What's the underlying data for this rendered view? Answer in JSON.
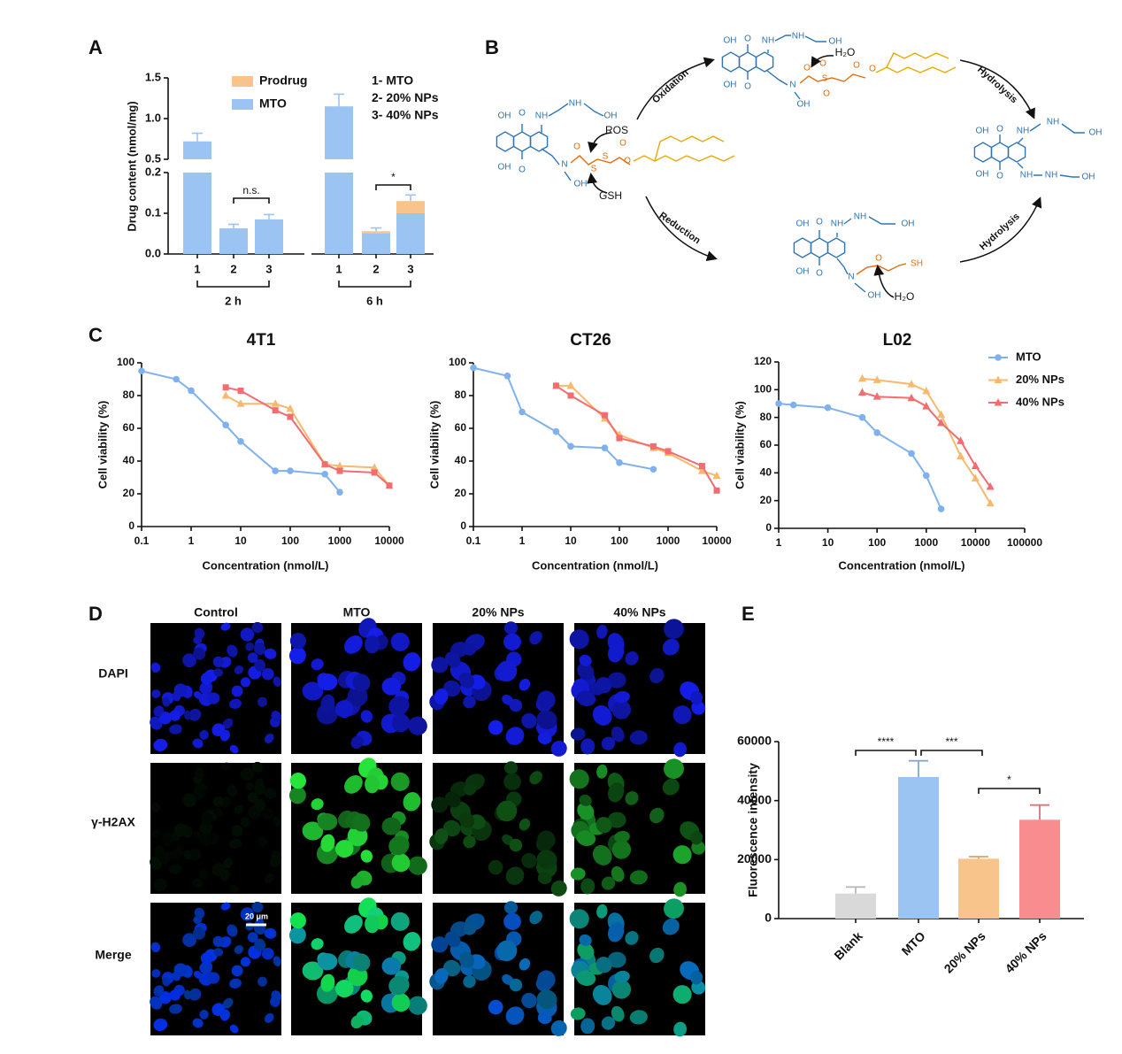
{
  "panels": [
    "A",
    "B",
    "C",
    "D",
    "E"
  ],
  "chart_data": [
    {
      "type": "stacked_bar",
      "y_label": "Drug content (nmol/mg)",
      "categories": [
        "1",
        "2",
        "3",
        "1",
        "2",
        "3"
      ],
      "groups": [
        "2 h",
        "6 h"
      ],
      "series": [
        {
          "name": "MTO",
          "color": "#9cc4f3",
          "values": [
            0.72,
            0.063,
            0.085,
            1.15,
            0.05,
            0.1
          ]
        },
        {
          "name": "Prodrug",
          "color": "#f9c38c",
          "values": [
            0,
            0,
            0,
            0,
            0.006,
            0.03
          ]
        }
      ],
      "errors": [
        0.1,
        0.01,
        0.012,
        0.15,
        0.008,
        0.015
      ],
      "ylim": [
        0,
        1.5
      ],
      "axis_break": [
        0.2,
        0.5
      ],
      "yticks": [
        {
          "value": 0,
          "label": "0.0"
        },
        0.1,
        0.2,
        0.5,
        {
          "value": 1,
          "label": "1.0"
        },
        1.5
      ],
      "key": [
        "1- MTO",
        "2- 20% NPs",
        "3- 40% NPs"
      ],
      "annotations": [
        "n.s.",
        "*"
      ]
    },
    {
      "type": "line",
      "title": "4T1",
      "x_label": "Concentration (nmol/L)",
      "y_label": "Cell viability (%)",
      "xscale": "log",
      "xlim": [
        0.1,
        10000
      ],
      "xticks": [
        0.1,
        1,
        10,
        100,
        1000,
        10000
      ],
      "ylim": [
        0,
        100
      ],
      "yticks": [
        0,
        20,
        40,
        60,
        80,
        100
      ],
      "series": [
        {
          "color": "#7eb1ee",
          "marker": "circle",
          "x": [
            0.1,
            0.5,
            1,
            5,
            10,
            50,
            100,
            500,
            1000
          ],
          "values": [
            95,
            90,
            83,
            62,
            52,
            34,
            34,
            32,
            21
          ]
        },
        {
          "color": "#f8b86e",
          "marker": "triangle",
          "x": [
            5,
            10,
            50,
            100,
            500,
            1000,
            5000,
            10000
          ],
          "values": [
            80,
            75,
            75,
            72,
            38,
            37,
            36,
            25
          ]
        },
        {
          "color": "#f26c70",
          "marker": "square",
          "x": [
            5,
            10,
            50,
            100,
            500,
            1000,
            5000,
            10000
          ],
          "values": [
            85,
            83,
            71,
            67,
            38,
            34,
            33,
            25
          ]
        }
      ]
    },
    {
      "type": "line",
      "title": "CT26",
      "x_label": "Concentration (nmol/L)",
      "y_label": "Cell viability (%)",
      "xscale": "log",
      "xlim": [
        0.1,
        10000
      ],
      "xticks": [
        0.1,
        1,
        10,
        100,
        1000,
        10000
      ],
      "ylim": [
        0,
        100
      ],
      "yticks": [
        0,
        20,
        40,
        60,
        80,
        100
      ],
      "series": [
        {
          "color": "#7eb1ee",
          "marker": "circle",
          "x": [
            0.1,
            0.5,
            1,
            5,
            10,
            50,
            100,
            500
          ],
          "values": [
            97,
            92,
            70,
            58,
            49,
            48,
            39,
            35
          ]
        },
        {
          "color": "#f8b86e",
          "marker": "triangle",
          "x": [
            5,
            10,
            50,
            100,
            500,
            1000,
            5000,
            10000
          ],
          "values": [
            86,
            86,
            66,
            56,
            48,
            45,
            34,
            31
          ]
        },
        {
          "color": "#f26c70",
          "marker": "square",
          "x": [
            5,
            10,
            50,
            100,
            500,
            1000,
            5000,
            10000
          ],
          "values": [
            86,
            80,
            68,
            54,
            49,
            46,
            37,
            22
          ]
        }
      ]
    },
    {
      "type": "line",
      "title": "L02",
      "x_label": "Concentration (nmol/L)",
      "y_label": "Cell viability (%)",
      "xscale": "log",
      "xlim": [
        1,
        100000
      ],
      "xticks": [
        1,
        10,
        100,
        1000,
        10000,
        100000
      ],
      "ylim": [
        0,
        120
      ],
      "yticks": [
        0,
        20,
        40,
        60,
        80,
        100,
        120
      ],
      "legend": "right",
      "series": [
        {
          "name": "MTO",
          "color": "#7eb1ee",
          "marker": "circle",
          "x": [
            1,
            2,
            10,
            50,
            100,
            500,
            1000,
            2000
          ],
          "values": [
            90,
            89,
            87,
            80,
            69,
            54,
            38,
            14
          ]
        },
        {
          "name": "20% NPs",
          "color": "#f8b86e",
          "marker": "triangle",
          "x": [
            50,
            100,
            500,
            1000,
            2000,
            5000,
            10000,
            20000
          ],
          "values": [
            108,
            107,
            104,
            99,
            82,
            52,
            36,
            18
          ]
        },
        {
          "name": "40% NPs",
          "color": "#f26c70",
          "marker": "triangle",
          "x": [
            50,
            100,
            500,
            1000,
            2000,
            5000,
            10000,
            20000
          ],
          "values": [
            98,
            95,
            94,
            88,
            76,
            63,
            45,
            30
          ]
        }
      ]
    },
    {
      "type": "bar",
      "y_label": "Fluorescence intensity",
      "categories": [
        "Blank",
        "MTO",
        "20% NPs",
        "40% NPs"
      ],
      "values": [
        8500,
        48000,
        20300,
        33500
      ],
      "errors": [
        2200,
        5500,
        700,
        5000
      ],
      "colors": [
        "#d9d9d9",
        "#9cc4f3",
        "#f9c38c",
        "#f98c8f"
      ],
      "ylim": [
        0,
        60000
      ],
      "yticks": [
        0,
        20000,
        40000,
        60000
      ],
      "significance": [
        "****",
        "***",
        "*"
      ]
    }
  ],
  "diagram": {
    "labels": [
      "ROS",
      "GSH",
      "Oxidation",
      "Reduction",
      "Hydrolysis",
      "Hydrolysis",
      "H₂O",
      "H₂O"
    ],
    "molecules": [
      {
        "atoms": [
          "OH",
          "O",
          "NH",
          "NH",
          "OH",
          "OH",
          "O",
          "N",
          "OH",
          "O",
          "S",
          "S",
          "O",
          "O"
        ]
      },
      {
        "atoms": [
          "OH",
          "O",
          "NH",
          "NH",
          "OH",
          "OH",
          "O",
          "N",
          "OH",
          "O",
          "S",
          "O",
          "O",
          "O",
          "O"
        ]
      },
      {
        "atoms": [
          "OH",
          "O",
          "NH",
          "NH",
          "OH",
          "OH",
          "O",
          "N",
          "OH",
          "O",
          "SH"
        ]
      },
      {
        "atoms": [
          "OH",
          "O",
          "NH",
          "NH",
          "OH",
          "OH",
          "O",
          "NH",
          "NH",
          "OH"
        ]
      }
    ]
  },
  "images": {
    "columns": [
      "Control",
      "MTO",
      "20% NPs",
      "40% NPs"
    ],
    "rows": [
      "DAPI",
      "γ-H2AX",
      "Merge"
    ],
    "scale_bar": "20 μm"
  }
}
